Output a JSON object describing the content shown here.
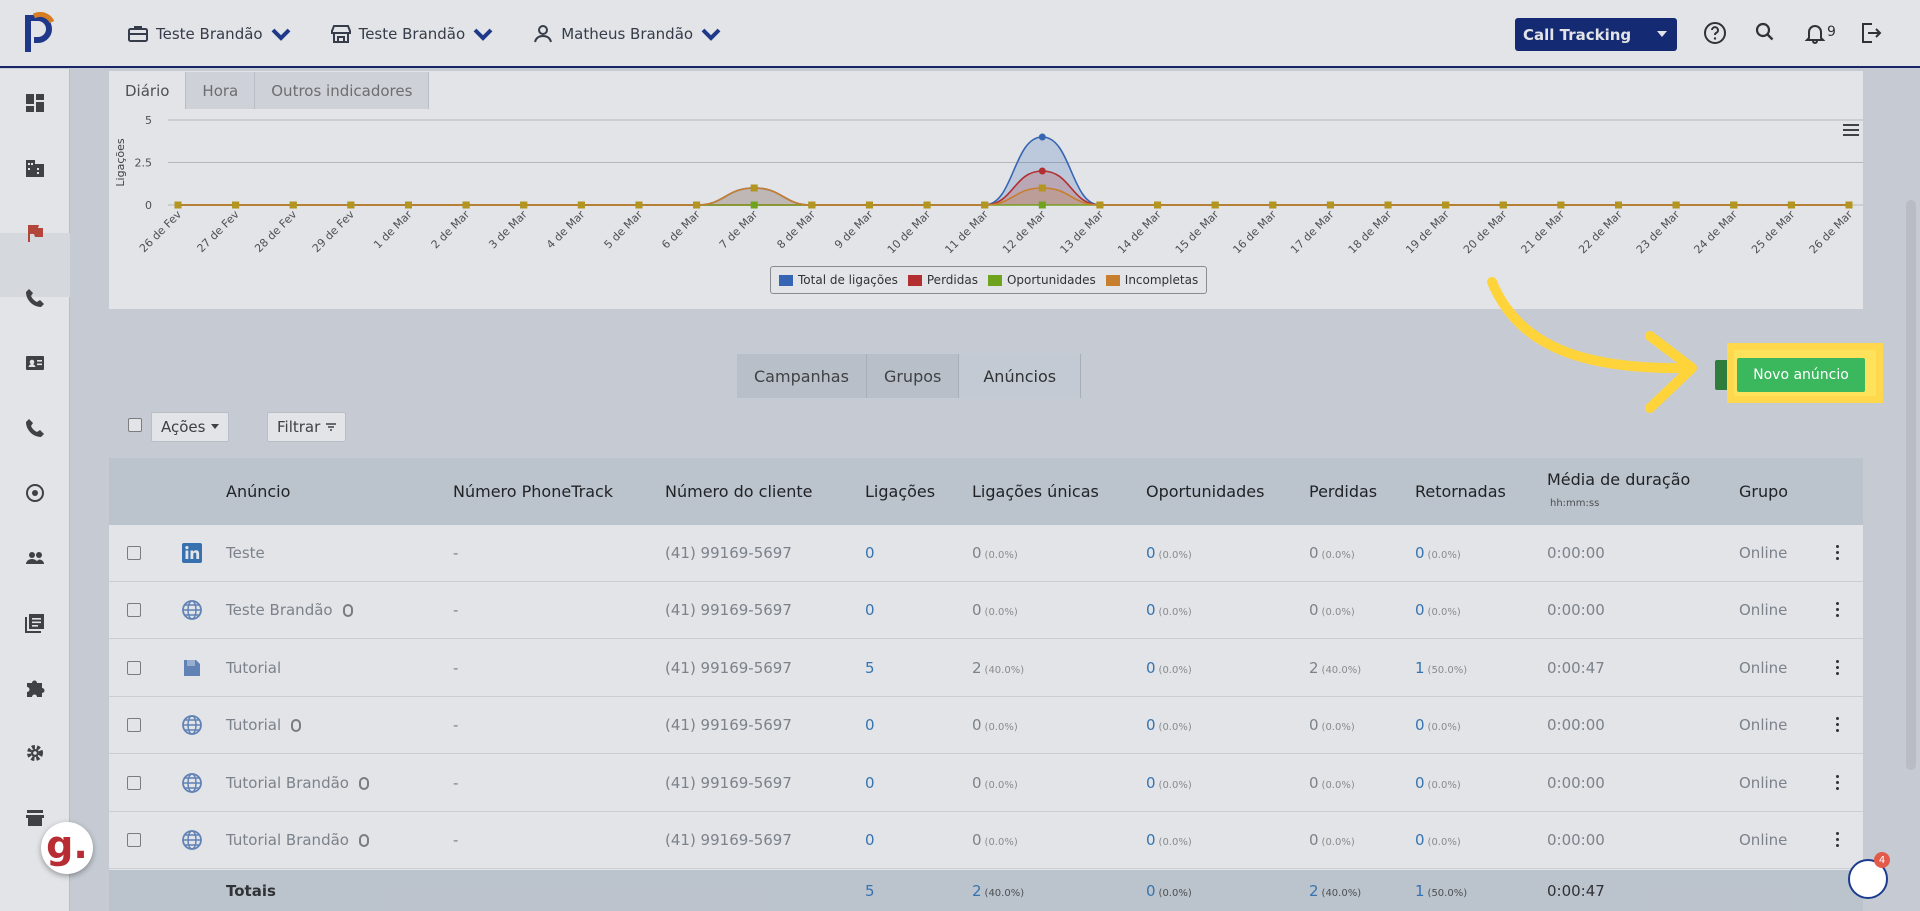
{
  "topbar": {
    "menu": [
      {
        "label": "Teste Brandão",
        "icon": "briefcase-icon"
      },
      {
        "label": "Teste Brandão",
        "icon": "store-icon"
      },
      {
        "label": "Matheus Brandão",
        "icon": "user-icon"
      }
    ],
    "product_select": "Call Tracking",
    "notifications_count": "9"
  },
  "chart": {
    "tabs": [
      "Diário",
      "Hora",
      "Outros indicadores"
    ],
    "active_tab": "Diário"
  },
  "chart_data": {
    "type": "area",
    "title": "",
    "ylabel": "Ligações",
    "ylim": [
      0,
      5
    ],
    "y_ticks": [
      "5",
      "2.5",
      "0"
    ],
    "categories": [
      "26 de Fev",
      "27 de Fev",
      "28 de Fev",
      "29 de Fev",
      "1 de Mar",
      "2 de Mar",
      "3 de Mar",
      "4 de Mar",
      "5 de Mar",
      "6 de Mar",
      "7 de Mar",
      "8 de Mar",
      "9 de Mar",
      "10 de Mar",
      "11 de Mar",
      "12 de Mar",
      "13 de Mar",
      "14 de Mar",
      "15 de Mar",
      "16 de Mar",
      "17 de Mar",
      "18 de Mar",
      "19 de Mar",
      "20 de Mar",
      "21 de Mar",
      "22 de Mar",
      "23 de Mar",
      "24 de Mar",
      "25 de Mar",
      "26 de Mar"
    ],
    "series": [
      {
        "name": "Total de ligações",
        "color": "#3a6fc4",
        "values": [
          0,
          0,
          0,
          0,
          0,
          0,
          0,
          0,
          0,
          0,
          1,
          0,
          0,
          0,
          0,
          4,
          0,
          0,
          0,
          0,
          0,
          0,
          0,
          0,
          0,
          0,
          0,
          0,
          0,
          0
        ]
      },
      {
        "name": "Perdidas",
        "color": "#c9302c",
        "values": [
          0,
          0,
          0,
          0,
          0,
          0,
          0,
          0,
          0,
          0,
          0,
          0,
          0,
          0,
          0,
          2,
          0,
          0,
          0,
          0,
          0,
          0,
          0,
          0,
          0,
          0,
          0,
          0,
          0,
          0
        ]
      },
      {
        "name": "Oportunidades",
        "color": "#7cb518",
        "values": [
          0,
          0,
          0,
          0,
          0,
          0,
          0,
          0,
          0,
          0,
          0,
          0,
          0,
          0,
          0,
          0,
          0,
          0,
          0,
          0,
          0,
          0,
          0,
          0,
          0,
          0,
          0,
          0,
          0,
          0
        ]
      },
      {
        "name": "Incompletas",
        "color": "#e08a2c",
        "values": [
          0,
          0,
          0,
          0,
          0,
          0,
          0,
          0,
          0,
          0,
          1,
          0,
          0,
          0,
          0,
          1,
          0,
          0,
          0,
          0,
          0,
          0,
          0,
          0,
          0,
          0,
          0,
          0,
          0,
          0
        ]
      }
    ],
    "legend_position": "bottom"
  },
  "sections": {
    "tabs": [
      "Campanhas",
      "Grupos",
      "Anúncios"
    ],
    "active": "Anúncios"
  },
  "toolbar": {
    "actions_label": "Ações",
    "filter_label": "Filtrar",
    "new_ad_label": "Novo anúncio"
  },
  "table": {
    "headers": {
      "ad": "Anúncio",
      "phonetrack": "Número PhoneTrack",
      "client_number": "Número do cliente",
      "calls": "Ligações",
      "unique_calls": "Ligações únicas",
      "opportunities": "Oportunidades",
      "lost": "Perdidas",
      "returned": "Retornadas",
      "avg_duration": "Média de duração",
      "avg_duration_unit": "hh:mm:ss",
      "group": "Grupo"
    },
    "rows": [
      {
        "icon": "linkedin-icon",
        "name": "Teste",
        "mouse": false,
        "phonetrack": "-",
        "client": "(41) 99169-5697",
        "calls": "0",
        "unique": "0",
        "unique_pct": "(0.0%)",
        "opp": "0",
        "opp_pct": "(0.0%)",
        "lost": "0",
        "lost_pct": "(0.0%)",
        "ret": "0",
        "ret_pct": "(0.0%)",
        "duration": "0:00:00",
        "group": "Online"
      },
      {
        "icon": "globe-icon",
        "name": "Teste Brandão",
        "mouse": true,
        "phonetrack": "-",
        "client": "(41) 99169-5697",
        "calls": "0",
        "unique": "0",
        "unique_pct": "(0.0%)",
        "opp": "0",
        "opp_pct": "(0.0%)",
        "lost": "0",
        "lost_pct": "(0.0%)",
        "ret": "0",
        "ret_pct": "(0.0%)",
        "duration": "0:00:00",
        "group": "Online"
      },
      {
        "icon": "book-icon",
        "name": "Tutorial",
        "mouse": false,
        "phonetrack": "-",
        "client": "(41) 99169-5697",
        "calls": "5",
        "unique": "2",
        "unique_pct": "(40.0%)",
        "opp": "0",
        "opp_pct": "(0.0%)",
        "lost": "2",
        "lost_pct": "(40.0%)",
        "ret": "1",
        "ret_pct": "(50.0%)",
        "duration": "0:00:47",
        "group": "Online"
      },
      {
        "icon": "globe-icon",
        "name": "Tutorial",
        "mouse": true,
        "phonetrack": "-",
        "client": "(41) 99169-5697",
        "calls": "0",
        "unique": "0",
        "unique_pct": "(0.0%)",
        "opp": "0",
        "opp_pct": "(0.0%)",
        "lost": "0",
        "lost_pct": "(0.0%)",
        "ret": "0",
        "ret_pct": "(0.0%)",
        "duration": "0:00:00",
        "group": "Online"
      },
      {
        "icon": "globe-icon",
        "name": "Tutorial Brandão",
        "mouse": true,
        "phonetrack": "-",
        "client": "(41) 99169-5697",
        "calls": "0",
        "unique": "0",
        "unique_pct": "(0.0%)",
        "opp": "0",
        "opp_pct": "(0.0%)",
        "lost": "0",
        "lost_pct": "(0.0%)",
        "ret": "0",
        "ret_pct": "(0.0%)",
        "duration": "0:00:00",
        "group": "Online"
      },
      {
        "icon": "globe-icon",
        "name": "Tutorial Brandão",
        "mouse": true,
        "phonetrack": "-",
        "client": "(41) 99169-5697",
        "calls": "0",
        "unique": "0",
        "unique_pct": "(0.0%)",
        "opp": "0",
        "opp_pct": "(0.0%)",
        "lost": "0",
        "lost_pct": "(0.0%)",
        "ret": "0",
        "ret_pct": "(0.0%)",
        "duration": "0:00:00",
        "group": "Online"
      }
    ],
    "totals": {
      "label": "Totais",
      "calls": "5",
      "unique": "2",
      "unique_pct": "(40.0%)",
      "opp": "0",
      "opp_pct": "(0.0%)",
      "lost": "2",
      "lost_pct": "(40.0%)",
      "ret": "1",
      "ret_pct": "(50.0%)",
      "duration": "0:00:47"
    }
  },
  "widgets": {
    "g_badge": "g.",
    "chat_count": "4"
  },
  "colors": {
    "brand_navy": "#132a7a",
    "highlight_yellow": "#ffd84d",
    "primary_green": "#3bb75e"
  }
}
